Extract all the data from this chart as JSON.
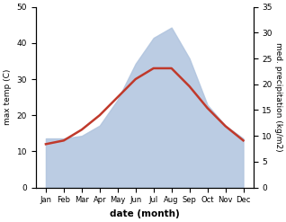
{
  "months": [
    "Jan",
    "Feb",
    "Mar",
    "Apr",
    "May",
    "Jun",
    "Jul",
    "Aug",
    "Sep",
    "Oct",
    "Nov",
    "Dec"
  ],
  "temp_max": [
    12,
    13,
    16,
    20,
    25,
    30,
    33,
    33,
    28,
    22,
    17,
    13
  ],
  "precipitation": [
    9.5,
    9.5,
    10,
    12,
    17,
    24,
    29,
    31,
    25,
    16,
    12,
    9.5
  ],
  "temp_ylim": [
    0,
    50
  ],
  "precip_ylim": [
    0,
    35
  ],
  "temp_yticks": [
    0,
    10,
    20,
    30,
    40,
    50
  ],
  "precip_yticks": [
    0,
    5,
    10,
    15,
    20,
    25,
    30,
    35
  ],
  "line_color": "#c0392b",
  "fill_color": "#b0c4de",
  "fill_alpha": 0.85,
  "xlabel": "date (month)",
  "ylabel_left": "max temp (C)",
  "ylabel_right": "med. precipitation (kg/m2)",
  "bg_color": "#ffffff",
  "line_width": 1.8
}
